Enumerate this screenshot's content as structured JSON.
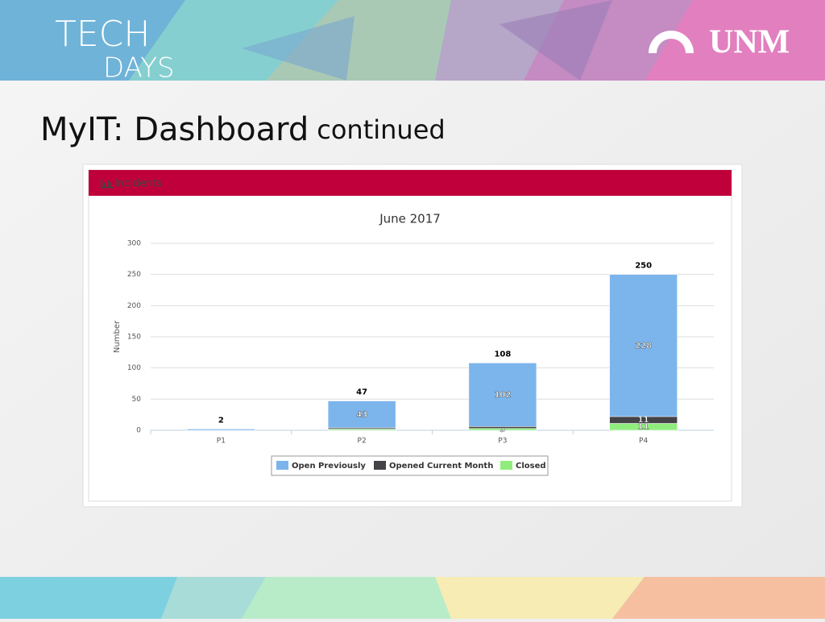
{
  "header": {
    "logo_left_line1": "TECH",
    "logo_left_line2": "DAYS",
    "logo_right": "UNM"
  },
  "slide": {
    "title": "MyIT: Dashboard",
    "title_suffix": "continued"
  },
  "panel": {
    "title": "Incidents"
  },
  "chart_data": {
    "type": "stacked-bar",
    "title": "June 2017",
    "y_label": "Number",
    "categories": [
      "P1",
      "P2",
      "P3",
      "P4"
    ],
    "series": [
      {
        "name": "Open Previously",
        "color": "#7cb5ec",
        "values": [
          2,
          43,
          102,
          228
        ],
        "value_labels": [
          null,
          "43",
          "102",
          "228"
        ]
      },
      {
        "name": "Opened Current Month",
        "color": "#434348",
        "values": [
          0,
          2,
          3,
          11
        ],
        "value_labels": [
          null,
          null,
          null,
          "11"
        ]
      },
      {
        "name": "Closed",
        "color": "#90ed7d",
        "values": [
          0,
          2,
          3,
          11
        ],
        "value_labels": [
          null,
          null,
          "3",
          "11"
        ]
      }
    ],
    "totals": [
      2,
      47,
      108,
      250
    ],
    "ylim": [
      0,
      300
    ],
    "yticks": [
      0,
      50,
      100,
      150,
      200,
      250,
      300
    ],
    "grid": true,
    "legend": "bottom"
  }
}
